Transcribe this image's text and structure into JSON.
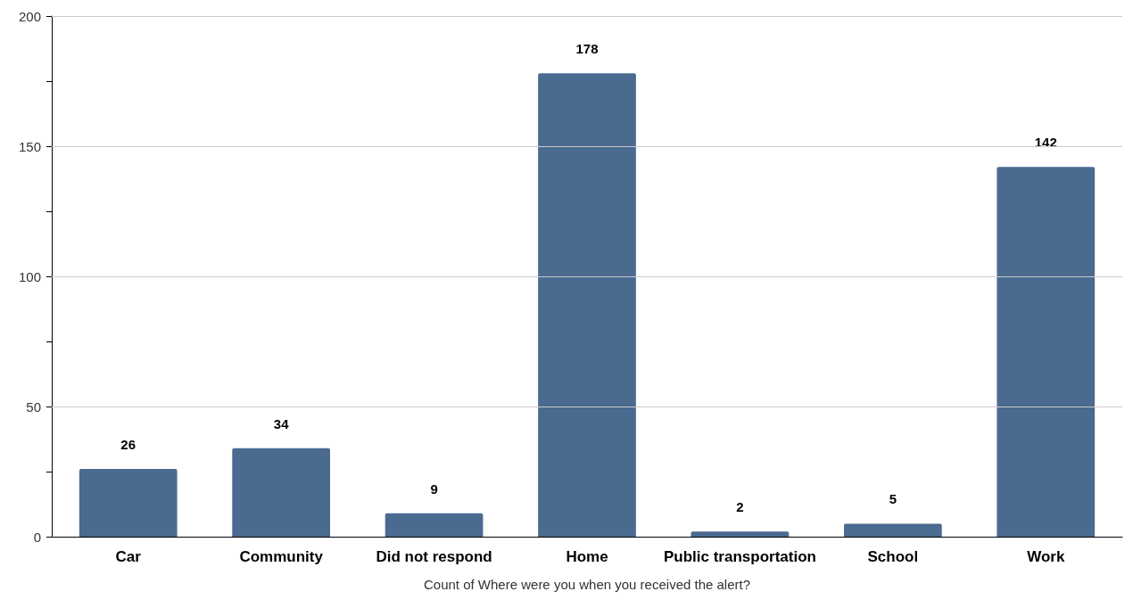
{
  "chart_data": {
    "type": "bar",
    "xlabel": "Count of Where were you when you received the alert?",
    "categories": [
      "Car",
      "Community",
      "Did not respond",
      "Home",
      "Public transportation",
      "School",
      "Work"
    ],
    "values": [
      26,
      34,
      9,
      178,
      2,
      5,
      142
    ],
    "color": "#4a6a90",
    "ylim": [
      0,
      200
    ],
    "yticks": [
      0,
      {
        "value": 25,
        "label": null
      },
      50,
      {
        "value": 75,
        "label": null
      },
      100,
      {
        "value": 125,
        "label": null
      },
      150,
      {
        "value": 175,
        "label": null
      },
      200
    ],
    "grid": "y",
    "data_labels": true
  }
}
